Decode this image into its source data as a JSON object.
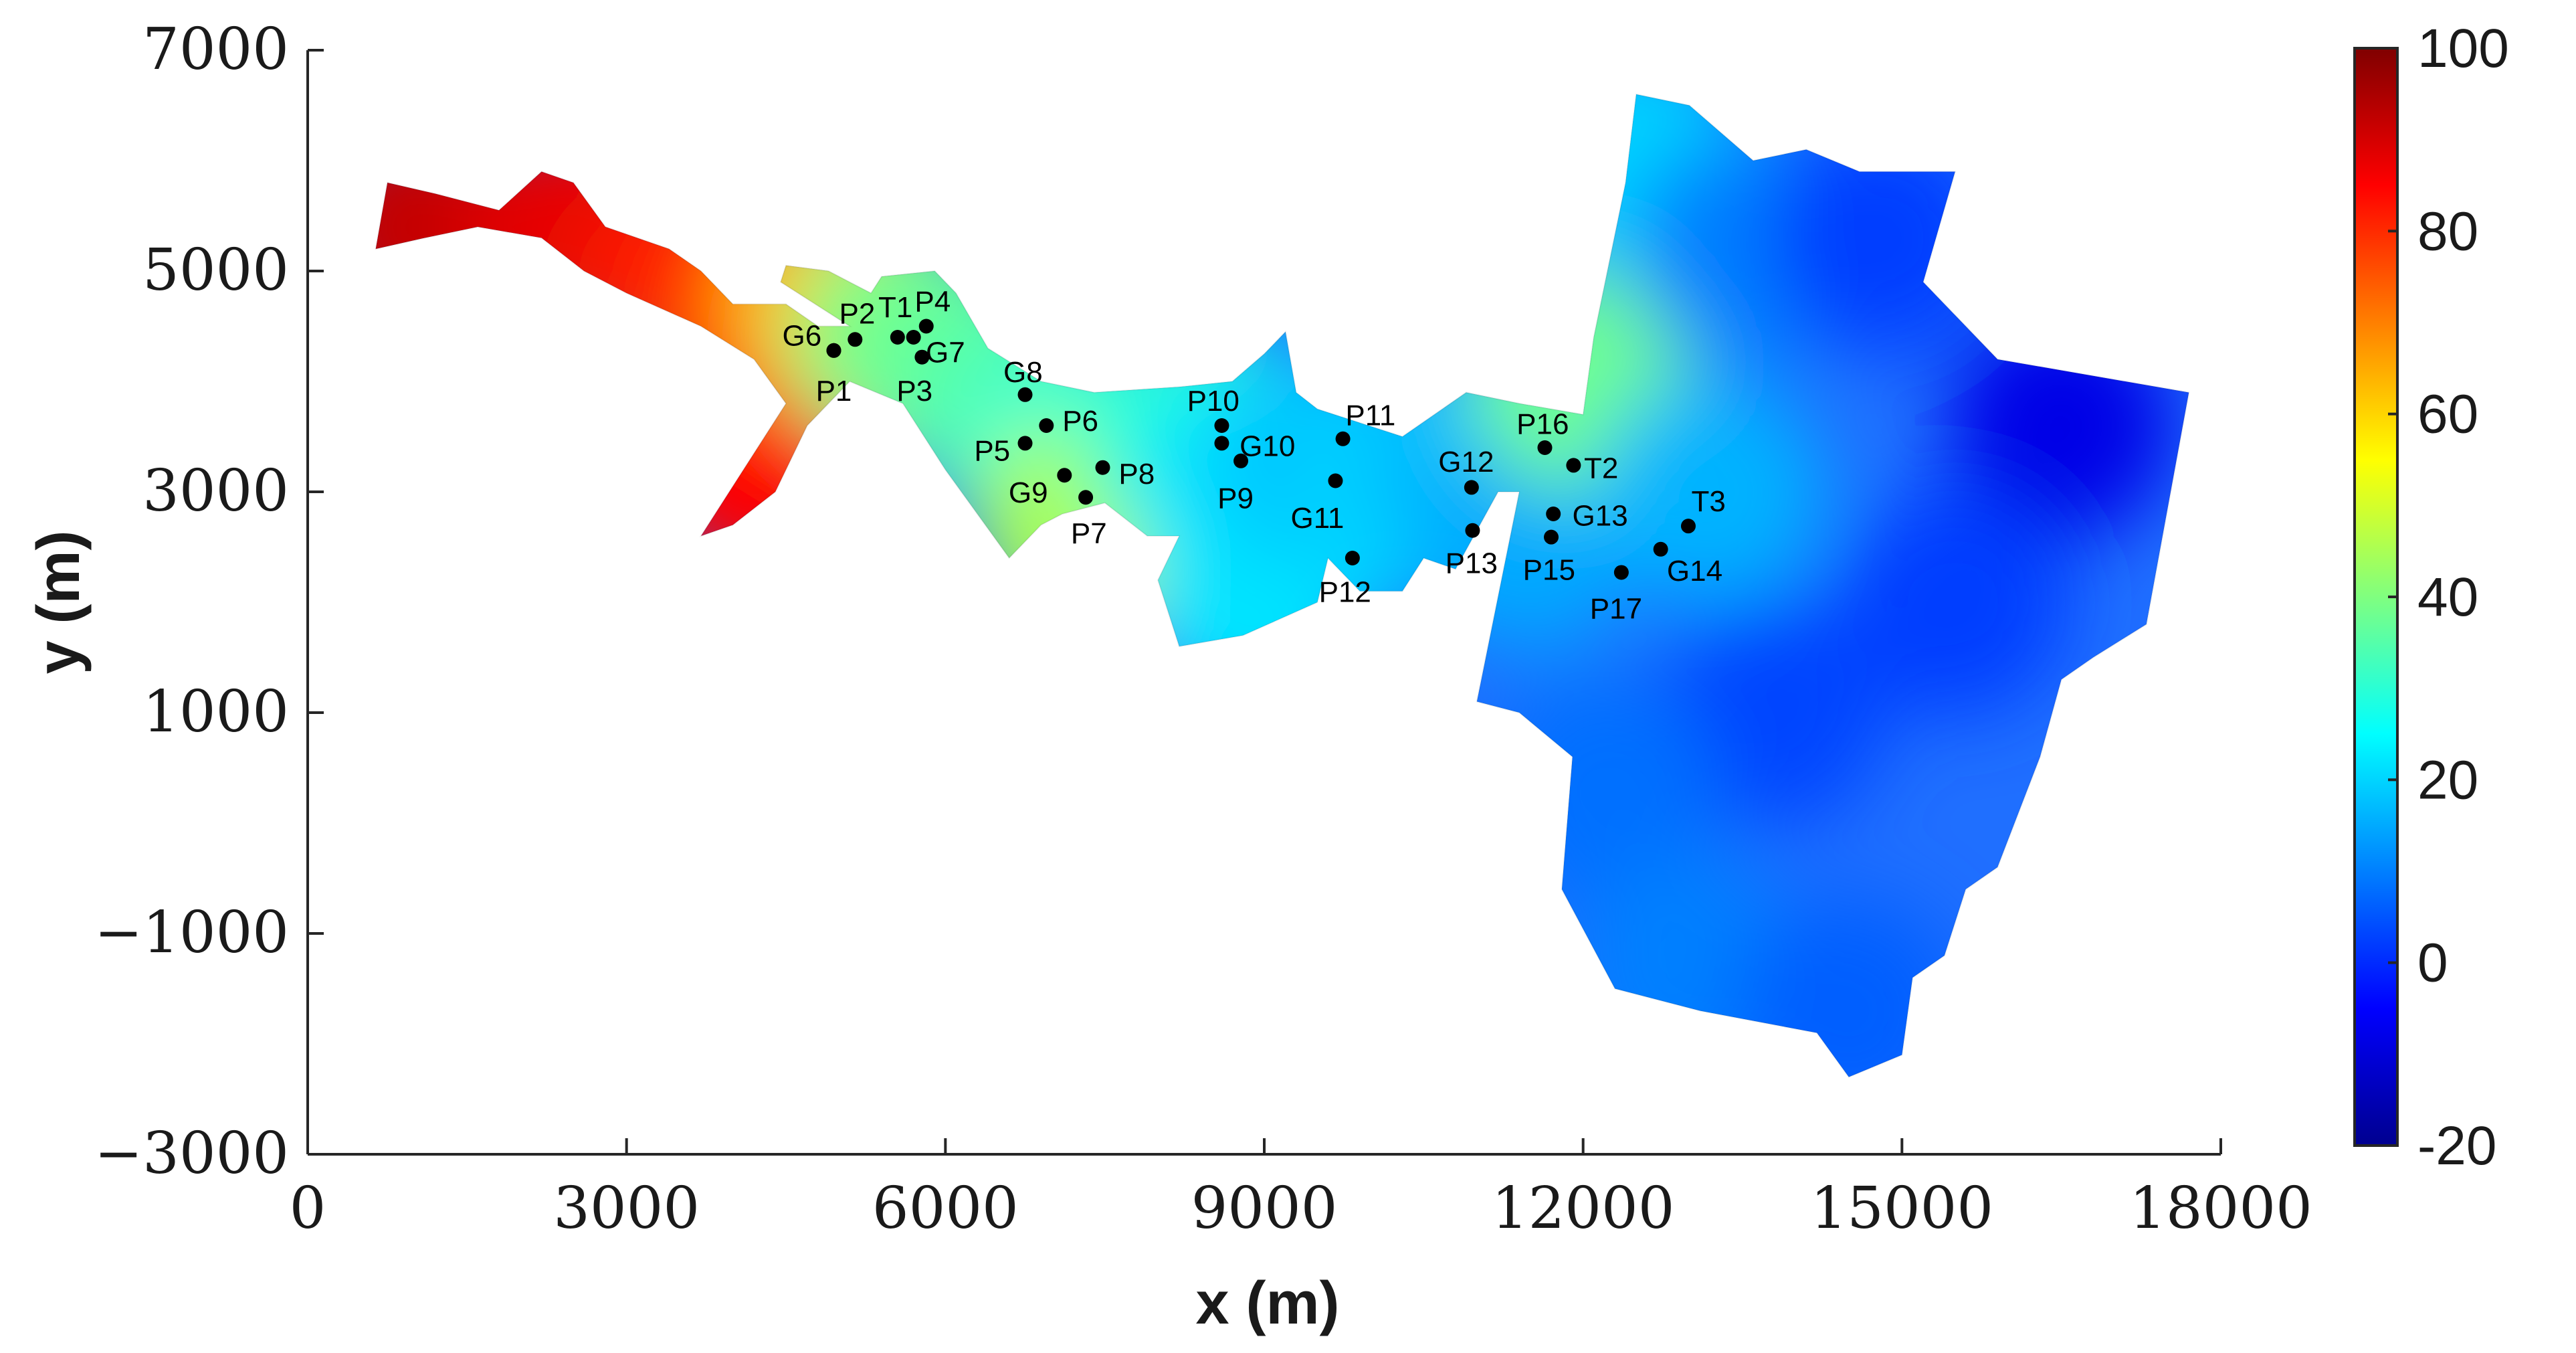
{
  "chart_data": {
    "type": "heatmap",
    "title": "",
    "xlabel": "x (m)",
    "ylabel": "y (m)",
    "xlim": [
      0,
      18000
    ],
    "ylim": [
      -3000,
      7000
    ],
    "x_ticks": [
      0,
      3000,
      6000,
      9000,
      12000,
      15000,
      18000
    ],
    "x_tick_labels": [
      "0",
      "3000",
      "6000",
      "9000",
      "12000",
      "15000",
      "18000"
    ],
    "y_ticks": [
      -3000,
      -1000,
      1000,
      3000,
      5000,
      7000
    ],
    "y_tick_labels": [
      "−3000",
      "−1000",
      "1000",
      "3000",
      "5000",
      "7000"
    ],
    "colorbar": {
      "colormap": "jet",
      "range": [
        -20,
        100
      ],
      "ticks": [
        -20,
        0,
        20,
        40,
        60,
        80,
        100
      ],
      "tick_labels": [
        "-20",
        "0",
        "20",
        "40",
        "60",
        "80",
        "100"
      ]
    },
    "domain_outline": [
      [
        640,
        5200
      ],
      [
        750,
        5800
      ],
      [
        1200,
        5700
      ],
      [
        1800,
        5550
      ],
      [
        2200,
        5900
      ],
      [
        2500,
        5800
      ],
      [
        2800,
        5400
      ],
      [
        3400,
        5200
      ],
      [
        3700,
        5000
      ],
      [
        4000,
        4700
      ],
      [
        4500,
        4700
      ],
      [
        4800,
        4500
      ],
      [
        5100,
        4500
      ],
      [
        4450,
        4900
      ],
      [
        4500,
        5050
      ],
      [
        4900,
        5000
      ],
      [
        5300,
        4800
      ],
      [
        5400,
        4950
      ],
      [
        5900,
        5000
      ],
      [
        6100,
        4800
      ],
      [
        6400,
        4300
      ],
      [
        6900,
        4000
      ],
      [
        7400,
        3900
      ],
      [
        8200,
        3950
      ],
      [
        8700,
        4000
      ],
      [
        9000,
        4250
      ],
      [
        9200,
        4450
      ],
      [
        9300,
        3900
      ],
      [
        9500,
        3750
      ],
      [
        10300,
        3500
      ],
      [
        10900,
        3900
      ],
      [
        11400,
        3800
      ],
      [
        12000,
        3700
      ],
      [
        12100,
        4400
      ],
      [
        12400,
        5800
      ],
      [
        12500,
        6600
      ],
      [
        13000,
        6500
      ],
      [
        13600,
        6000
      ],
      [
        14100,
        6100
      ],
      [
        14600,
        5900
      ],
      [
        15500,
        5900
      ],
      [
        15200,
        4900
      ],
      [
        15900,
        4200
      ],
      [
        17700,
        3900
      ],
      [
        17300,
        1800
      ],
      [
        16800,
        1500
      ],
      [
        16500,
        1300
      ],
      [
        16300,
        600
      ],
      [
        15900,
        -400
      ],
      [
        15600,
        -600
      ],
      [
        15400,
        -1200
      ],
      [
        15100,
        -1400
      ],
      [
        15000,
        -2100
      ],
      [
        14500,
        -2300
      ],
      [
        14200,
        -1900
      ],
      [
        13100,
        -1700
      ],
      [
        12300,
        -1500
      ],
      [
        11800,
        -600
      ],
      [
        11900,
        600
      ],
      [
        11400,
        1000
      ],
      [
        11000,
        1100
      ],
      [
        11400,
        3000
      ],
      [
        11200,
        3000
      ],
      [
        10800,
        2300
      ],
      [
        10500,
        2400
      ],
      [
        10300,
        2100
      ],
      [
        9900,
        2100
      ],
      [
        9600,
        2400
      ],
      [
        9500,
        2000
      ],
      [
        8800,
        1700
      ],
      [
        8200,
        1600
      ],
      [
        8000,
        2200
      ],
      [
        8200,
        2600
      ],
      [
        7900,
        2600
      ],
      [
        7500,
        2900
      ],
      [
        7100,
        2800
      ],
      [
        6900,
        2700
      ],
      [
        6600,
        2400
      ],
      [
        6300,
        2800
      ],
      [
        6000,
        3200
      ],
      [
        5600,
        3800
      ],
      [
        5100,
        4000
      ],
      [
        4700,
        3600
      ],
      [
        4400,
        3000
      ],
      [
        4000,
        2700
      ],
      [
        3700,
        2600
      ],
      [
        4100,
        3200
      ],
      [
        4500,
        3800
      ],
      [
        4200,
        4200
      ],
      [
        3700,
        4500
      ],
      [
        3000,
        4800
      ],
      [
        2600,
        5000
      ],
      [
        2200,
        5300
      ],
      [
        1600,
        5400
      ],
      [
        1100,
        5300
      ]
    ],
    "field_samples": [
      {
        "x": 1000,
        "y": 5400,
        "v": 92
      },
      {
        "x": 2500,
        "y": 5400,
        "v": 88
      },
      {
        "x": 3600,
        "y": 4900,
        "v": 82
      },
      {
        "x": 4300,
        "y": 4200,
        "v": 78
      },
      {
        "x": 4200,
        "y": 3200,
        "v": 85
      },
      {
        "x": 5000,
        "y": 4700,
        "v": 62
      },
      {
        "x": 5600,
        "y": 4400,
        "v": 40
      },
      {
        "x": 6000,
        "y": 4200,
        "v": 38
      },
      {
        "x": 6600,
        "y": 3800,
        "v": 35
      },
      {
        "x": 7200,
        "y": 3200,
        "v": 28
      },
      {
        "x": 7300,
        "y": 2700,
        "v": 45
      },
      {
        "x": 8300,
        "y": 3600,
        "v": 30
      },
      {
        "x": 8800,
        "y": 3000,
        "v": 22
      },
      {
        "x": 8900,
        "y": 2000,
        "v": 22
      },
      {
        "x": 9600,
        "y": 3300,
        "v": 18
      },
      {
        "x": 10300,
        "y": 3000,
        "v": 20
      },
      {
        "x": 11000,
        "y": 3300,
        "v": 17
      },
      {
        "x": 11500,
        "y": 2600,
        "v": 15
      },
      {
        "x": 12000,
        "y": 4000,
        "v": 38
      },
      {
        "x": 12500,
        "y": 6000,
        "v": 20
      },
      {
        "x": 13500,
        "y": 5200,
        "v": 10
      },
      {
        "x": 14800,
        "y": 5300,
        "v": 2
      },
      {
        "x": 16500,
        "y": 3600,
        "v": -8
      },
      {
        "x": 13200,
        "y": 3000,
        "v": 16
      },
      {
        "x": 13800,
        "y": 1000,
        "v": 3
      },
      {
        "x": 15500,
        "y": 2000,
        "v": 2
      },
      {
        "x": 12200,
        "y": 300,
        "v": 8
      },
      {
        "x": 13000,
        "y": -1300,
        "v": 10
      },
      {
        "x": 14500,
        "y": -1700,
        "v": 6
      }
    ],
    "points": [
      {
        "label": "P1",
        "x": 4950,
        "y": 4280,
        "lx": 4950,
        "ly": 3920
      },
      {
        "label": "P2",
        "x": 5150,
        "y": 4380,
        "lx": 5170,
        "ly": 4620
      },
      {
        "label": "G6",
        "x": 4950,
        "y": 4280,
        "lx": 4650,
        "ly": 4420
      },
      {
        "label": "T1",
        "x": 5550,
        "y": 4400,
        "lx": 5530,
        "ly": 4680
      },
      {
        "label": "P4",
        "x": 5820,
        "y": 4500,
        "lx": 5880,
        "ly": 4730
      },
      {
        "label": "G7",
        "x": 5700,
        "y": 4400,
        "lx": 6000,
        "ly": 4270
      },
      {
        "label": "P3",
        "x": 5780,
        "y": 4220,
        "lx": 5710,
        "ly": 3920
      },
      {
        "label": "G8",
        "x": 6750,
        "y": 3880,
        "lx": 6730,
        "ly": 4090
      },
      {
        "label": "P6",
        "x": 6950,
        "y": 3600,
        "lx": 7270,
        "ly": 3650
      },
      {
        "label": "P5",
        "x": 6750,
        "y": 3440,
        "lx": 6440,
        "ly": 3380
      },
      {
        "label": "G9",
        "x": 7120,
        "y": 3150,
        "lx": 6780,
        "ly": 3000
      },
      {
        "label": "P8",
        "x": 7480,
        "y": 3220,
        "lx": 7800,
        "ly": 3170
      },
      {
        "label": "P7",
        "x": 7320,
        "y": 2950,
        "lx": 7350,
        "ly": 2630
      },
      {
        "label": "P10",
        "x": 8600,
        "y": 3600,
        "lx": 8520,
        "ly": 3830
      },
      {
        "label": "G10",
        "x": 8600,
        "y": 3440,
        "lx": 9030,
        "ly": 3420
      },
      {
        "label": "P9",
        "x": 8780,
        "y": 3280,
        "lx": 8730,
        "ly": 2950
      },
      {
        "label": "P11",
        "x": 9740,
        "y": 3480,
        "lx": 10000,
        "ly": 3700
      },
      {
        "label": "G11",
        "x": 9670,
        "y": 3100,
        "lx": 9500,
        "ly": 2770
      },
      {
        "label": "P12",
        "x": 9830,
        "y": 2400,
        "lx": 9760,
        "ly": 2100
      },
      {
        "label": "G12",
        "x": 10950,
        "y": 3040,
        "lx": 10900,
        "ly": 3280
      },
      {
        "label": "P13",
        "x": 10960,
        "y": 2650,
        "lx": 10950,
        "ly": 2360
      },
      {
        "label": "P16",
        "x": 11640,
        "y": 3400,
        "lx": 11620,
        "ly": 3620
      },
      {
        "label": "T2",
        "x": 11910,
        "y": 3240,
        "lx": 12170,
        "ly": 3220
      },
      {
        "label": "G13",
        "x": 11720,
        "y": 2800,
        "lx": 12160,
        "ly": 2790
      },
      {
        "label": "P15",
        "x": 11700,
        "y": 2590,
        "lx": 11680,
        "ly": 2300
      },
      {
        "label": "T3",
        "x": 12990,
        "y": 2690,
        "lx": 13180,
        "ly": 2920
      },
      {
        "label": "G14",
        "x": 12730,
        "y": 2480,
        "lx": 13050,
        "ly": 2290
      },
      {
        "label": "P17",
        "x": 12360,
        "y": 2270,
        "lx": 12310,
        "ly": 1950
      }
    ]
  }
}
